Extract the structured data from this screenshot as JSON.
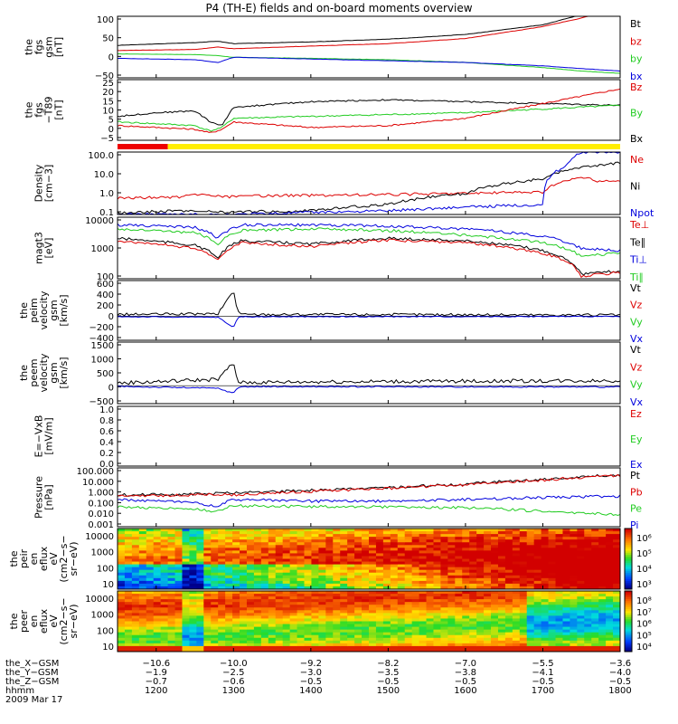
{
  "title": "P4 (TH-E) fields and on-board moments overview",
  "colors": {
    "black": "#000000",
    "red": "#dd0000",
    "green": "#22cc22",
    "blue": "#0000dd",
    "yellow": "#ffee00",
    "barred": "#ee0000"
  },
  "chart_data": [
    {
      "type": "line",
      "id": "fgs",
      "ylabel": [
        "the",
        "fgs",
        "gsm",
        "[nT]"
      ],
      "yticks": [
        "100",
        "50",
        "0",
        "−50"
      ],
      "ylim": [
        -75,
        105
      ],
      "legend": [
        {
          "name": "Bt",
          "color": "black"
        },
        {
          "name": "bz",
          "color": "red"
        },
        {
          "name": "by",
          "color": "green"
        },
        {
          "name": "bx",
          "color": "blue"
        }
      ],
      "series": [
        {
          "name": "Bt",
          "color": "black",
          "x": [
            1150,
            1250,
            1280,
            1300,
            1400,
            1500,
            1600,
            1700,
            1750,
            1800
          ],
          "y": [
            20,
            28,
            32,
            25,
            30,
            38,
            52,
            80,
            110,
            140
          ]
        },
        {
          "name": "bz",
          "color": "red",
          "x": [
            1150,
            1250,
            1280,
            1300,
            1400,
            1500,
            1600,
            1700,
            1750,
            1800
          ],
          "y": [
            5,
            8,
            15,
            10,
            18,
            25,
            40,
            75,
            100,
            130
          ]
        },
        {
          "name": "by",
          "color": "green",
          "x": [
            1150,
            1250,
            1280,
            1300,
            1400,
            1500,
            1600,
            1700,
            1750,
            1800
          ],
          "y": [
            -5,
            -7,
            -10,
            -15,
            -18,
            -22,
            -30,
            -45,
            -55,
            -62
          ]
        },
        {
          "name": "bx",
          "color": "blue",
          "x": [
            1150,
            1250,
            1280,
            1300,
            1400,
            1500,
            1600,
            1700,
            1750,
            1800
          ],
          "y": [
            -18,
            -22,
            -30,
            -15,
            -20,
            -25,
            -30,
            -40,
            -48,
            -55
          ]
        }
      ]
    },
    {
      "type": "line",
      "id": "fgs_t89",
      "ylabel": [
        "the",
        "fgs",
        "−T89",
        "[nT]"
      ],
      "yticks": [
        "25",
        "20",
        "15",
        "10",
        "5",
        "0",
        "−5"
      ],
      "ylim": [
        -8,
        25
      ],
      "legend": [
        {
          "name": "Bz",
          "color": "red"
        },
        {
          "name": "By",
          "color": "green"
        },
        {
          "name": "Bx",
          "color": "black"
        }
      ],
      "series": [
        {
          "name": "Bx",
          "color": "black",
          "x": [
            1150,
            1200,
            1250,
            1270,
            1285,
            1300,
            1400,
            1500,
            1600,
            1700,
            1800
          ],
          "y": [
            5,
            7,
            8,
            2,
            0,
            10,
            13,
            14,
            13,
            12,
            11
          ]
        },
        {
          "name": "By",
          "color": "green",
          "x": [
            1150,
            1200,
            1250,
            1270,
            1285,
            1300,
            1400,
            1500,
            1600,
            1700,
            1800
          ],
          "y": [
            2,
            1,
            0,
            -3,
            -1,
            4,
            5,
            6,
            7,
            9,
            11
          ]
        },
        {
          "name": "Bz",
          "color": "red",
          "x": [
            1150,
            1200,
            1250,
            1270,
            1285,
            1300,
            1400,
            1500,
            1600,
            1700,
            1800
          ],
          "y": [
            0,
            -1,
            -2,
            -4,
            -2,
            2,
            -1,
            0,
            4,
            12,
            20
          ]
        }
      ]
    },
    {
      "type": "line",
      "id": "density",
      "scale": "log",
      "ylabel": [
        "Density",
        "[cm−3]"
      ],
      "yticks": [
        "100.0",
        "10.0",
        "1.0",
        "0.1"
      ],
      "ylim": [
        0.1,
        100
      ],
      "legend": [
        {
          "name": "Ne",
          "color": "red"
        },
        {
          "name": "Ni",
          "color": "black"
        },
        {
          "name": "Npot",
          "color": "blue"
        }
      ],
      "series": [
        {
          "name": "Ne",
          "color": "red",
          "x": [
            1150,
            1230,
            1260,
            1290,
            1350,
            1500,
            1700,
            1750,
            1770,
            1800
          ],
          "y": [
            0.6,
            0.7,
            0.9,
            0.7,
            0.8,
            0.9,
            1.2,
            6,
            4,
            4
          ]
        },
        {
          "name": "Ni",
          "color": "black",
          "x": [
            1150,
            1230,
            1290,
            1400,
            1500,
            1600,
            1700,
            1800
          ],
          "y": [
            0.12,
            0.15,
            0.13,
            0.15,
            0.3,
            1,
            5,
            30
          ]
        },
        {
          "name": "Npot",
          "color": "blue",
          "x": [
            1150,
            1300,
            1500,
            1700,
            1730,
            1750,
            1800
          ],
          "y": [
            0.1,
            0.1,
            0.15,
            0.3,
            20,
            100,
            100
          ]
        }
      ]
    },
    {
      "type": "line",
      "id": "magt3",
      "scale": "log",
      "ylabel": [
        "magt3",
        "[eV]"
      ],
      "yticks": [
        "10000",
        "1000",
        "100"
      ],
      "ylim": [
        40,
        10000
      ],
      "legend": [
        {
          "name": "Te⊥",
          "color": "red"
        },
        {
          "name": "Te∥",
          "color": "black"
        },
        {
          "name": "Ti⊥",
          "color": "blue"
        },
        {
          "name": "Ti∥",
          "color": "green"
        }
      ],
      "series": [
        {
          "name": "Ti⊥",
          "color": "blue",
          "x": [
            1150,
            1250,
            1280,
            1310,
            1400,
            1500,
            1600,
            1700,
            1750,
            1800
          ],
          "y": [
            5000,
            4000,
            1500,
            5000,
            5000,
            4500,
            3500,
            1800,
            600,
            500
          ]
        },
        {
          "name": "Ti∥",
          "color": "green",
          "x": [
            1150,
            1250,
            1280,
            1310,
            1400,
            1500,
            1600,
            1700,
            1750,
            1800
          ],
          "y": [
            3500,
            2500,
            900,
            3000,
            3500,
            3000,
            2000,
            1000,
            300,
            400
          ]
        },
        {
          "name": "Te∥",
          "color": "black",
          "x": [
            1150,
            1250,
            1280,
            1310,
            1400,
            1500,
            1600,
            1700,
            1750,
            1800
          ],
          "y": [
            1500,
            800,
            250,
            1200,
            900,
            1500,
            1200,
            500,
            60,
            80
          ]
        },
        {
          "name": "Te⊥",
          "color": "red",
          "x": [
            1150,
            1250,
            1280,
            1310,
            1400,
            1500,
            1600,
            1700,
            1750,
            1800
          ],
          "y": [
            1200,
            600,
            200,
            1000,
            700,
            1300,
            1000,
            400,
            50,
            70
          ]
        }
      ]
    },
    {
      "type": "line",
      "id": "peim",
      "ylabel": [
        "the",
        "peim",
        "velocity",
        "gsm",
        "[km/s]"
      ],
      "yticks": [
        "600",
        "400",
        "200",
        "0",
        "−200",
        "−400"
      ],
      "ylim": [
        -420,
        620
      ],
      "legend": [
        {
          "name": "Vt",
          "color": "black"
        },
        {
          "name": "Vz",
          "color": "red"
        },
        {
          "name": "Vy",
          "color": "green"
        },
        {
          "name": "Vx",
          "color": "blue"
        }
      ],
      "series": [
        {
          "name": "Vt",
          "color": "black",
          "x": [
            1150,
            1280,
            1300,
            1305,
            1310,
            1400,
            1800
          ],
          "y": [
            30,
            40,
            450,
            100,
            30,
            30,
            20
          ]
        },
        {
          "name": "Vx",
          "color": "blue",
          "x": [
            1150,
            1280,
            1300,
            1305,
            1310,
            1400,
            1800
          ],
          "y": [
            -10,
            -20,
            -200,
            -30,
            -10,
            -10,
            -5
          ]
        }
      ]
    },
    {
      "type": "line",
      "id": "peem",
      "ylabel": [
        "the",
        "peem",
        "velocity",
        "gsm",
        "[km/s]"
      ],
      "yticks": [
        "1500",
        "1000",
        "500",
        "0",
        "−500"
      ],
      "ylim": [
        -700,
        1700
      ],
      "legend": [
        {
          "name": "Vt",
          "color": "black"
        },
        {
          "name": "Vz",
          "color": "red"
        },
        {
          "name": "Vy",
          "color": "green"
        },
        {
          "name": "Vx",
          "color": "blue"
        }
      ],
      "series": [
        {
          "name": "Vt",
          "color": "black",
          "x": [
            1150,
            1280,
            1300,
            1305,
            1310,
            1400,
            1800
          ],
          "y": [
            100,
            250,
            900,
            200,
            120,
            150,
            200
          ]
        },
        {
          "name": "Vx",
          "color": "blue",
          "x": [
            1150,
            1280,
            1300,
            1305,
            1310,
            1400,
            1800
          ],
          "y": [
            -30,
            -100,
            -300,
            -80,
            -40,
            -40,
            -50
          ]
        }
      ]
    },
    {
      "type": "line",
      "id": "efield",
      "ylabel": [
        "E=−VxB",
        "[mV/m]"
      ],
      "yticks": [
        "1.0",
        "0.8",
        "0.6",
        "0.4",
        "0.2",
        "0.0"
      ],
      "ylim": [
        0,
        1
      ],
      "legend": [
        {
          "name": "Ez",
          "color": "red"
        },
        {
          "name": "Ey",
          "color": "green"
        },
        {
          "name": "Ex",
          "color": "blue"
        }
      ],
      "series": []
    },
    {
      "type": "line",
      "id": "pressure",
      "scale": "log",
      "ylabel": [
        "Pressure",
        "[nPa]"
      ],
      "yticks": [
        "100.000",
        "10.000",
        "1.000",
        "0.100",
        "0.010",
        "0.001"
      ],
      "ylim": [
        0.001,
        100
      ],
      "legend": [
        {
          "name": "Pt",
          "color": "black"
        },
        {
          "name": "Pb",
          "color": "red"
        },
        {
          "name": "Pe",
          "color": "green"
        },
        {
          "name": "Pi",
          "color": "blue"
        }
      ],
      "series": [
        {
          "name": "Pt",
          "color": "black",
          "x": [
            1150,
            1250,
            1280,
            1300,
            1400,
            1500,
            1600,
            1700,
            1800
          ],
          "y": [
            0.5,
            0.6,
            0.7,
            0.7,
            1.2,
            2,
            4,
            10,
            25
          ]
        },
        {
          "name": "Pb",
          "color": "red",
          "x": [
            1150,
            1250,
            1280,
            1300,
            1400,
            1500,
            1600,
            1700,
            1800
          ],
          "y": [
            0.4,
            0.5,
            0.6,
            0.5,
            1,
            1.8,
            3.5,
            9,
            22
          ]
        },
        {
          "name": "Pi",
          "color": "blue",
          "x": [
            1150,
            1250,
            1280,
            1300,
            1400,
            1500,
            1600,
            1700,
            1800
          ],
          "y": [
            0.2,
            0.1,
            0.05,
            0.2,
            0.15,
            0.15,
            0.2,
            0.3,
            0.4
          ]
        },
        {
          "name": "Pe",
          "color": "green",
          "x": [
            1150,
            1250,
            1280,
            1300,
            1400,
            1500,
            1600,
            1700,
            1800
          ],
          "y": [
            0.05,
            0.03,
            0.02,
            0.06,
            0.05,
            0.05,
            0.04,
            0.02,
            0.01
          ]
        }
      ]
    },
    {
      "type": "heatmap",
      "id": "peir",
      "ylabel": [
        "the",
        "peir",
        "en",
        "eflux",
        "eV",
        "(cm2−s−",
        "sr−eV)"
      ],
      "yticks": [
        "10000",
        "1000",
        "100",
        "10"
      ],
      "colorbar_ticks": [
        "10⁶",
        "10⁵",
        "10⁴",
        "10³"
      ]
    },
    {
      "type": "heatmap",
      "id": "peer",
      "ylabel": [
        "the",
        "peer",
        "en",
        "eflux",
        "eV",
        "(cm2−s−",
        "sr−eV)"
      ],
      "yticks": [
        "10000",
        "1000",
        "100",
        "10"
      ],
      "colorbar_ticks": [
        "10⁸",
        "10⁷",
        "10⁶",
        "10⁵",
        "10⁴"
      ]
    }
  ],
  "status_bar": {
    "segments": [
      {
        "color": "barred",
        "from": 1150,
        "to": 1215
      },
      {
        "color": "yellow",
        "from": 1215,
        "to": 1800
      }
    ]
  },
  "xaxis": {
    "xlim": [
      1150,
      1800
    ],
    "ticks": [
      1200,
      1300,
      1400,
      1500,
      1600,
      1700,
      1800
    ],
    "rows": [
      {
        "label": "the_X−GSM",
        "values": [
          "−10.6",
          "−10.0",
          "−9.2",
          "−8.2",
          "−7.0",
          "−5.5",
          "−3.6"
        ]
      },
      {
        "label": "the_Y−GSM",
        "values": [
          "−1.9",
          "−2.5",
          "−3.0",
          "−3.5",
          "−3.8",
          "−4.1",
          "−4.0"
        ]
      },
      {
        "label": "the_Z−GSM",
        "values": [
          "−0.7",
          "−0.6",
          "−0.5",
          "−0.5",
          "−0.5",
          "−0.5",
          "−0.5"
        ]
      },
      {
        "label": "hhmm",
        "values": [
          "1200",
          "1300",
          "1400",
          "1500",
          "1600",
          "1700",
          "1800"
        ]
      }
    ],
    "date": "2009 Mar 17"
  }
}
